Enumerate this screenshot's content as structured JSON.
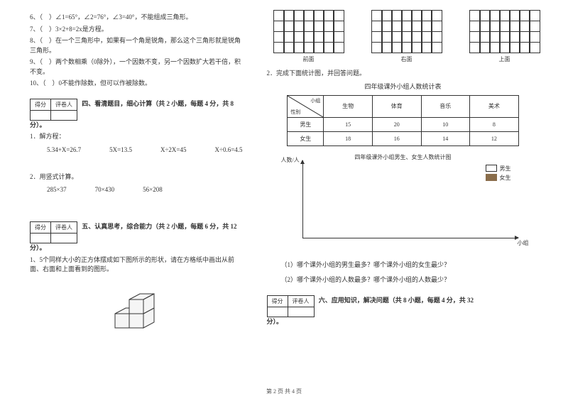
{
  "left": {
    "judgments": [
      "6、（　）∠1=65°，∠2=76°，∠3=40°，不能组成三角形。",
      "7、（　）3×2+8=2x是方程。",
      "8、（　）在一个三角形中，如果有一个角是锐角，那么这个三角形就是锐角三角形。",
      "9、（　）两个数相乘（0除外），一个因数不变，另一个因数扩大若干倍，积不变。",
      "10、（　）0不能作除数，但可以作被除数。"
    ],
    "score_h1": "得分",
    "score_h2": "评卷人",
    "sec4_title": "四、看清题目，细心计算（共 2 小题，每题 4 分，共 8",
    "fen": "分）。",
    "p1": "1．解方程：",
    "eqs1": [
      "5.34+X=26.7",
      "5X=13.5",
      "X÷2X=45",
      "X÷0.6=4.5"
    ],
    "p2": "2．用竖式计算。",
    "eqs2": [
      "285×37",
      "70×430",
      "56×208"
    ],
    "sec5_title": "五、认真思考，综合能力（共 2 小题，每题 6 分，共 12",
    "q5_1": "1、5个同样大小的正方体摆成如下图所示的形状，请在方格纸中画出从前面、右面和上面看到的图形。"
  },
  "right": {
    "grid_labels": [
      "前面",
      "右面",
      "上面"
    ],
    "q2": "2．完成下面统计图，并回答问题。",
    "tbl_title": "四年级课外小组人数统计表",
    "diag_top": "小组",
    "diag_bot": "性别",
    "cols": [
      "生物",
      "体育",
      "音乐",
      "美术"
    ],
    "rows": [
      {
        "h": "男生",
        "v": [
          "15",
          "20",
          "10",
          "8"
        ]
      },
      {
        "h": "女生",
        "v": [
          "18",
          "16",
          "14",
          "12"
        ]
      }
    ],
    "chart_title": "四年级课外小组男生、女生人数统计图",
    "y_label": "人数/人",
    "x_label": "小组",
    "legend": [
      {
        "label": "男生",
        "color": "#ffffff",
        "border": "#333"
      },
      {
        "label": "女生",
        "color": "#8a6d4b",
        "border": "#8a6d4b"
      }
    ],
    "sub_q1": "（1）哪个课外小组的男生最多？哪个课外小组的女生最少？",
    "sub_q2": "（2）哪个课外小组的人数最多？哪个课外小组的人数最少？",
    "sec6_title": "六、应用知识，解决问题（共 8 小题，每题 4 分，共 32"
  },
  "footer": "第 2 页 共 4 页",
  "grid": {
    "rows": 4,
    "cols": 7
  }
}
